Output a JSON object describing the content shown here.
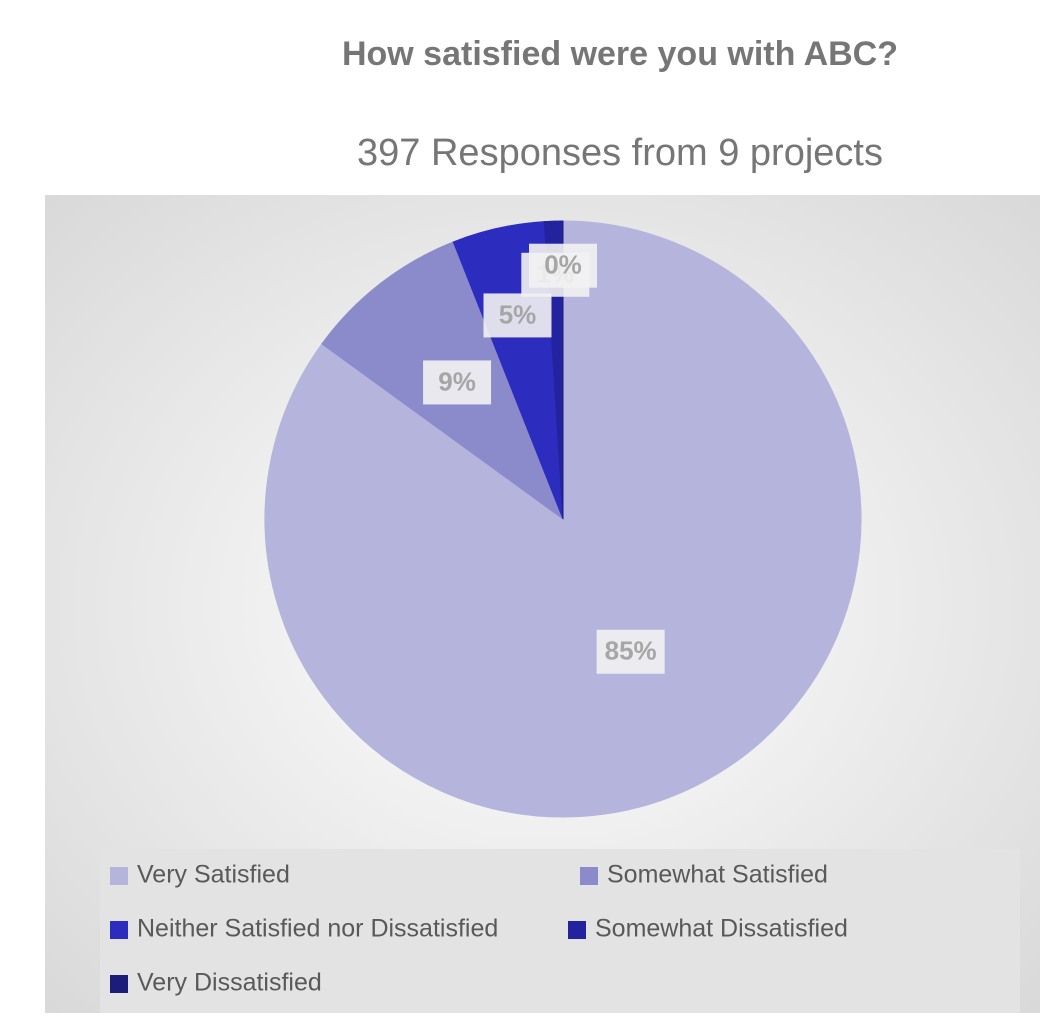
{
  "chart_data": {
    "type": "pie",
    "title": "How satisfied were you with ABC?",
    "subtitle": "397 Responses from 9 projects",
    "categories": [
      "Very Satisfied",
      "Somewhat Satisfied",
      "Neither Satisfied nor Dissatisfied",
      "Somewhat Dissatisfied",
      "Very Dissatisfied"
    ],
    "values": [
      85,
      9,
      5,
      1,
      0
    ],
    "value_labels": [
      "85%",
      "9%",
      "5%",
      "1%",
      "0%"
    ],
    "colors": [
      "#b4b4dd",
      "#8b8bcc",
      "#2c2cbe",
      "#23239f",
      "#1c1c7a"
    ],
    "legend": "bottom"
  }
}
